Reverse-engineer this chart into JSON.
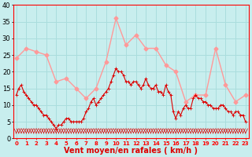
{
  "xlabel": "Vent moyen/en rafales ( km/h )",
  "bg_color": "#c8eeee",
  "grid_color": "#aadddd",
  "line_avg_color": "#dd0000",
  "line_gust_color": "#ff9999",
  "xlim": [
    -0.3,
    23.3
  ],
  "ylim": [
    0,
    40
  ],
  "yticks": [
    0,
    5,
    10,
    15,
    20,
    25,
    30,
    35,
    40
  ],
  "xticks": [
    0,
    1,
    2,
    3,
    4,
    5,
    6,
    7,
    8,
    9,
    10,
    11,
    12,
    13,
    14,
    15,
    16,
    17,
    18,
    19,
    20,
    21,
    22,
    23
  ],
  "gust_x": [
    0,
    1,
    2,
    3,
    4,
    5,
    6,
    7,
    8,
    9,
    10,
    11,
    12,
    13,
    14,
    15,
    16,
    17,
    18,
    19,
    20,
    21,
    22,
    23
  ],
  "gust_y": [
    24,
    27,
    26,
    25,
    17,
    18,
    15,
    12,
    15,
    23,
    36,
    28,
    31,
    27,
    27,
    22,
    20,
    11,
    13,
    13,
    27,
    16,
    11,
    13
  ],
  "avg_x": [
    0.0,
    0.25,
    0.5,
    0.75,
    1.0,
    1.25,
    1.5,
    1.75,
    2.0,
    2.25,
    2.5,
    2.75,
    3.0,
    3.25,
    3.5,
    3.75,
    4.0,
    4.25,
    4.5,
    4.75,
    5.0,
    5.25,
    5.5,
    5.75,
    6.0,
    6.25,
    6.5,
    6.75,
    7.0,
    7.25,
    7.5,
    7.75,
    8.0,
    8.25,
    8.5,
    8.75,
    9.0,
    9.25,
    9.5,
    9.75,
    10.0,
    10.25,
    10.5,
    10.75,
    11.0,
    11.25,
    11.5,
    11.75,
    12.0,
    12.25,
    12.5,
    12.75,
    13.0,
    13.25,
    13.5,
    13.75,
    14.0,
    14.25,
    14.5,
    14.75,
    15.0,
    15.25,
    15.5,
    15.75,
    16.0,
    16.25,
    16.5,
    16.75,
    17.0,
    17.25,
    17.5,
    17.75,
    18.0,
    18.25,
    18.5,
    18.75,
    19.0,
    19.25,
    19.5,
    19.75,
    20.0,
    20.25,
    20.5,
    20.75,
    21.0,
    21.25,
    21.5,
    21.75,
    22.0,
    22.25,
    22.5,
    22.75,
    23.0
  ],
  "avg_y": [
    13,
    15,
    16,
    14,
    13,
    12,
    11,
    10,
    10,
    9,
    8,
    7,
    7,
    6,
    5,
    4,
    3,
    4,
    4,
    5,
    6,
    6,
    5,
    5,
    5,
    5,
    5,
    6,
    8,
    9,
    11,
    12,
    10,
    11,
    12,
    13,
    14,
    15,
    17,
    19,
    21,
    20,
    20,
    19,
    17,
    17,
    16,
    17,
    17,
    16,
    15,
    16,
    18,
    16,
    15,
    15,
    16,
    14,
    14,
    13,
    16,
    14,
    13,
    8,
    6,
    8,
    7,
    9,
    10,
    9,
    9,
    12,
    13,
    12,
    12,
    11,
    11,
    10,
    10,
    9,
    9,
    9,
    10,
    10,
    9,
    8,
    8,
    7,
    8,
    8,
    7,
    7,
    5
  ],
  "arrow_color": "#dd0000",
  "xlabel_color": "#dd0000",
  "xlabel_fontsize": 7,
  "tick_fontsize_x": 5,
  "tick_fontsize_y": 6
}
